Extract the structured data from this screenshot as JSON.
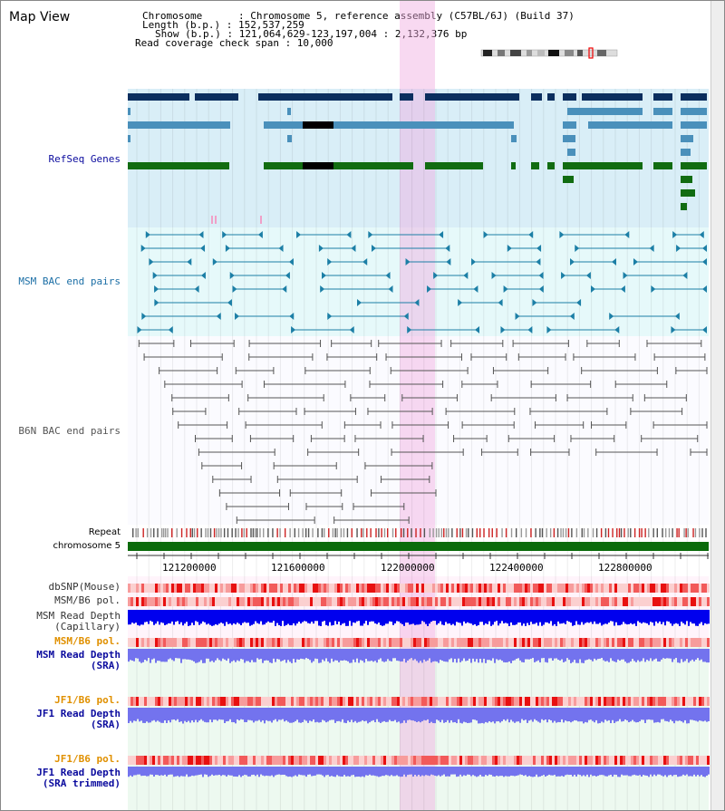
{
  "window_title": "Map View",
  "header": {
    "chromosome_row": "Chromosome      : Chromosome 5, reference assembly (C57BL/6J) (Build 37)",
    "length_row": "Length (b.p.) : 152,537,259",
    "show_row": "Show (b.p.) : 121,064,629-123,197,004 : 2,132,376 bp",
    "coverage_row": "Read coverage check span : 10,000"
  },
  "tracks": {
    "refseq": "RefSeq Genes",
    "msm_bac": "MSM BAC end pairs",
    "b6n_bac": "B6N BAC end pairs",
    "repeat": "Repeat",
    "chromosome": "chromosome 5",
    "dbsnp": "dbSNP(Mouse)",
    "msm_b6_pol_1": "MSM/B6 pol.",
    "msm_read_cap_1": "MSM Read Depth",
    "msm_read_cap_2": "(Capillary)",
    "msm_b6_pol_2": "MSM/B6 pol.",
    "msm_read_sra_1": "MSM Read Depth",
    "msm_read_sra_2": "(SRA)",
    "jf1_b6_pol_1": "JF1/B6 pol.",
    "jf1_read_sra_1": "JF1 Read Depth",
    "jf1_read_sra_2": "(SRA)",
    "jf1_b6_pol_2": "JF1/B6 pol.",
    "jf1_read_trim_1": "JF1 Read Depth",
    "jf1_read_trim_2": "(SRA trimmed)"
  },
  "axis": {
    "ticks": [
      "121200000",
      "121600000",
      "122000000",
      "122400000",
      "122800000"
    ]
  },
  "colors": {
    "refseq_bg": "#d9eef7",
    "msm_bg": "#e6f9fa",
    "b6n_bg": "#ffffff",
    "highlight": "#f7d6f0",
    "refseq_blue": "#0b2e5e",
    "refseq_lightblue": "#4a90bb",
    "refseq_green": "#116c11",
    "msm_line": "#1c7fa6",
    "b6n_line": "#555555",
    "chrom_green": "#0b6b0b",
    "read_blue": "#0000ee",
    "read_lavender": "#7373ee",
    "label_navy": "#0b0b9e",
    "label_orange": "#e09000",
    "label_teal": "#1c6fa6"
  }
}
